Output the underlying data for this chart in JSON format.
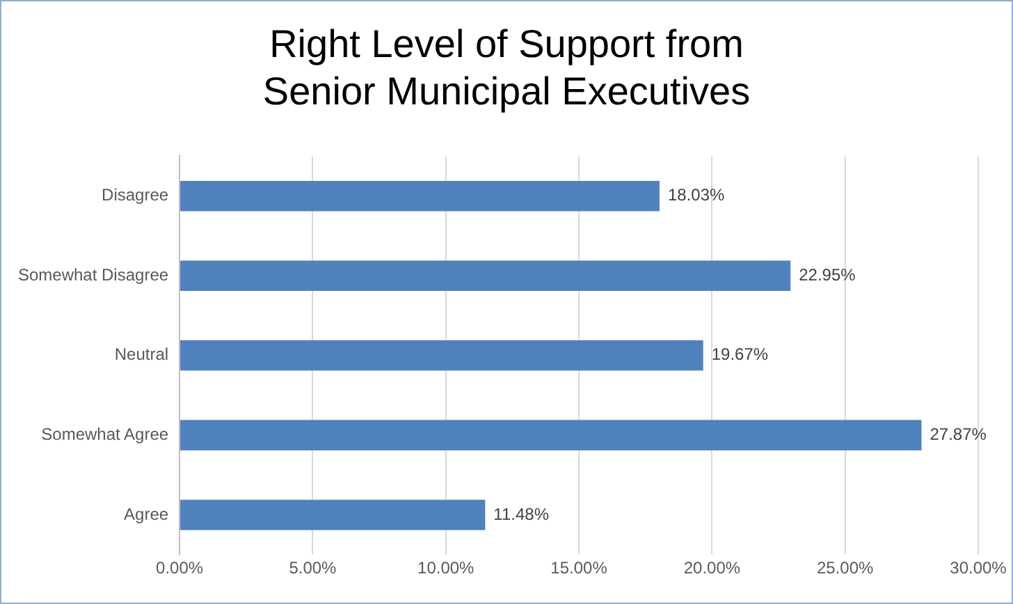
{
  "chart_data": {
    "type": "bar",
    "orientation": "horizontal",
    "title": "Right Level of Support from Senior Municipal Executives",
    "categories": [
      "Disagree",
      "Somewhat Disagree",
      "Neutral",
      "Somewhat Agree",
      "Agree"
    ],
    "values": [
      18.03,
      22.95,
      19.67,
      27.87,
      11.48
    ],
    "value_labels": [
      "18.03%",
      "22.95%",
      "19.67%",
      "27.87%",
      "11.48%"
    ],
    "color": "#4f81bd",
    "xlim": [
      0,
      30
    ],
    "xticks": [
      {
        "value": 0,
        "label": "0.00%"
      },
      {
        "value": 5,
        "label": "5.00%"
      },
      {
        "value": 10,
        "label": "10.00%"
      },
      {
        "value": 15,
        "label": "15.00%"
      },
      {
        "value": 20,
        "label": "20.00%"
      },
      {
        "value": 25,
        "label": "25.00%"
      },
      {
        "value": 30,
        "label": "30.00%"
      }
    ],
    "grid": "x"
  }
}
